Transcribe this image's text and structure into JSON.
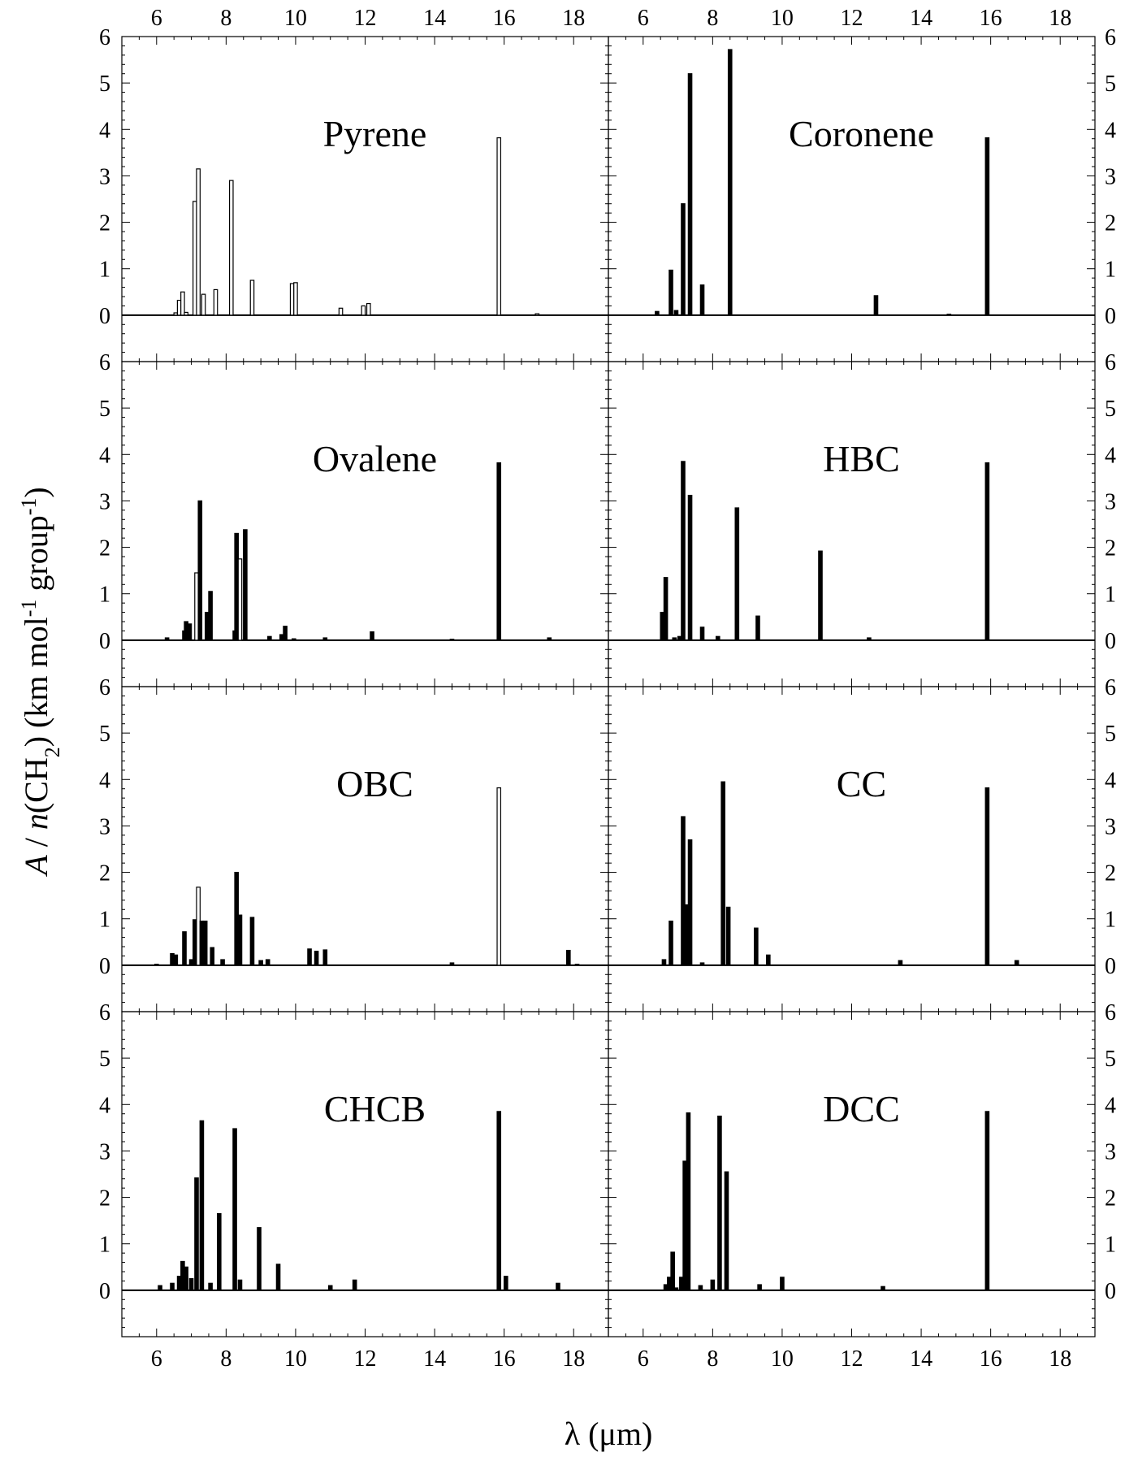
{
  "figure": {
    "ylabel": "A / n(CH2) (km mol-1 group-1)",
    "xlabel": "λ (μm)",
    "xticks": [
      6,
      8,
      10,
      12,
      14,
      16,
      18
    ],
    "yticks": [
      0,
      1,
      2,
      3,
      4,
      5,
      6
    ]
  },
  "chart_data": [
    {
      "type": "bar",
      "title": "Pyrene",
      "xlim": [
        5,
        19
      ],
      "ylim": [
        -1,
        6
      ],
      "grid": false,
      "style": "outline",
      "x": [
        6.55,
        6.65,
        6.75,
        6.85,
        7.1,
        7.2,
        7.35,
        7.7,
        8.15,
        8.75,
        9.9,
        10.0,
        11.3,
        11.95,
        12.1,
        15.85,
        16.95
      ],
      "values": [
        0.05,
        0.32,
        0.5,
        0.06,
        2.45,
        3.15,
        0.45,
        0.55,
        2.9,
        0.75,
        0.68,
        0.7,
        0.15,
        0.2,
        0.25,
        3.82,
        0.03
      ]
    },
    {
      "type": "bar",
      "title": "Coronene",
      "xlim": [
        5,
        19
      ],
      "ylim": [
        -1,
        6
      ],
      "grid": false,
      "style": "solid",
      "x": [
        6.4,
        6.8,
        6.95,
        7.15,
        7.35,
        7.7,
        8.5,
        12.7,
        14.8,
        15.9
      ],
      "values": [
        0.08,
        0.97,
        0.1,
        2.4,
        5.2,
        0.65,
        5.72,
        0.42,
        0.02,
        3.82
      ]
    },
    {
      "type": "bar",
      "title": "Ovalene",
      "xlim": [
        5,
        19
      ],
      "ylim": [
        -1,
        6
      ],
      "grid": false,
      "style": "mixed",
      "x": [
        6.3,
        6.8,
        6.85,
        6.95,
        7.15,
        7.25,
        7.45,
        7.55,
        8.25,
        8.3,
        8.4,
        8.55,
        9.25,
        9.6,
        9.7,
        9.95,
        10.85,
        12.2,
        14.5,
        15.85,
        17.3
      ],
      "values": [
        0.05,
        0.2,
        0.4,
        0.35,
        1.45,
        3.0,
        0.6,
        1.05,
        0.2,
        2.3,
        1.75,
        2.38,
        0.08,
        0.12,
        0.3,
        0.03,
        0.05,
        0.18,
        0.02,
        3.82,
        0.05
      ]
    },
    {
      "type": "bar",
      "title": "HBC",
      "xlim": [
        5,
        19
      ],
      "ylim": [
        -1,
        6
      ],
      "grid": false,
      "style": "solid",
      "x": [
        6.55,
        6.65,
        6.9,
        7.05,
        7.15,
        7.35,
        7.7,
        8.15,
        8.7,
        9.3,
        11.1,
        12.5,
        15.9
      ],
      "values": [
        0.6,
        1.35,
        0.05,
        0.08,
        3.85,
        3.12,
        0.28,
        0.08,
        2.85,
        0.52,
        1.92,
        0.05,
        3.82
      ]
    },
    {
      "type": "bar",
      "title": "OBC",
      "xlim": [
        5,
        19
      ],
      "ylim": [
        -1,
        6
      ],
      "grid": false,
      "style": "mixed",
      "x": [
        6.0,
        6.45,
        6.55,
        6.8,
        7.0,
        7.1,
        7.2,
        7.3,
        7.4,
        7.6,
        7.9,
        8.3,
        8.4,
        8.75,
        9.0,
        9.2,
        10.4,
        10.6,
        10.85,
        14.5,
        15.85,
        17.85,
        18.1
      ],
      "values": [
        0.02,
        0.25,
        0.22,
        0.72,
        0.12,
        0.98,
        1.68,
        0.95,
        0.95,
        0.38,
        0.12,
        2.0,
        1.08,
        1.03,
        0.1,
        0.12,
        0.35,
        0.3,
        0.33,
        0.05,
        3.82,
        0.32,
        0.02
      ]
    },
    {
      "type": "bar",
      "title": "CC",
      "xlim": [
        5,
        19
      ],
      "ylim": [
        -1,
        6
      ],
      "grid": false,
      "style": "solid",
      "x": [
        6.6,
        6.8,
        7.15,
        7.25,
        7.35,
        7.7,
        8.3,
        8.45,
        9.25,
        9.6,
        13.4,
        15.9,
        16.75
      ],
      "values": [
        0.12,
        0.95,
        3.2,
        1.3,
        2.7,
        0.05,
        3.95,
        1.25,
        0.8,
        0.22,
        0.1,
        3.82,
        0.1
      ]
    },
    {
      "type": "bar",
      "title": "CHCB",
      "xlim": [
        5,
        19
      ],
      "ylim": [
        -1,
        6
      ],
      "grid": false,
      "style": "solid",
      "x": [
        6.1,
        6.45,
        6.65,
        6.75,
        6.85,
        7.0,
        7.15,
        7.3,
        7.55,
        7.8,
        8.25,
        8.4,
        8.95,
        9.5,
        11.0,
        11.7,
        15.85,
        16.05,
        17.55
      ],
      "values": [
        0.1,
        0.15,
        0.3,
        0.62,
        0.5,
        0.25,
        2.42,
        3.65,
        0.15,
        1.65,
        3.48,
        0.22,
        1.35,
        0.56,
        0.1,
        0.22,
        3.85,
        0.3,
        0.15
      ]
    },
    {
      "type": "bar",
      "title": "DCC",
      "xlim": [
        5,
        19
      ],
      "ylim": [
        -1,
        6
      ],
      "grid": false,
      "style": "solid",
      "x": [
        6.65,
        6.75,
        6.85,
        6.95,
        7.1,
        7.2,
        7.3,
        7.65,
        8.0,
        8.2,
        8.4,
        9.35,
        10.0,
        12.9,
        15.9
      ],
      "values": [
        0.12,
        0.28,
        0.82,
        0.05,
        0.28,
        2.78,
        3.82,
        0.1,
        0.22,
        3.75,
        2.55,
        0.12,
        0.28,
        0.08,
        3.85
      ]
    }
  ]
}
